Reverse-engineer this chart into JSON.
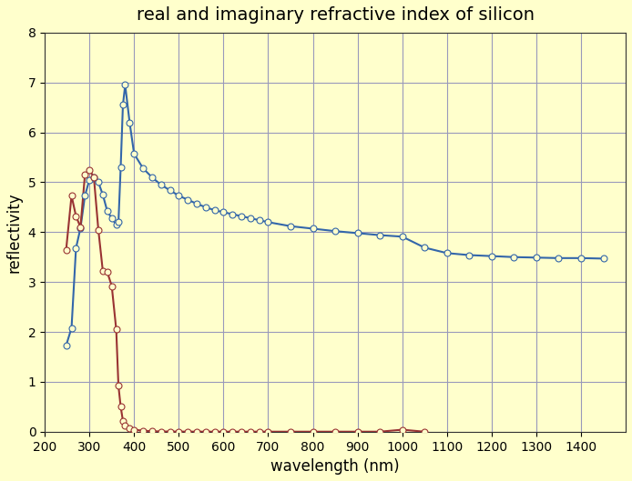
{
  "title": "real and imaginary refractive index of silicon",
  "xlabel": "wavelength (nm)",
  "ylabel": "reflectivity",
  "background_color": "#ffffcc",
  "grid_color": "#9999bb",
  "xlim": [
    200,
    1500
  ],
  "ylim": [
    0,
    8
  ],
  "xticks": [
    200,
    300,
    400,
    500,
    600,
    700,
    800,
    900,
    1000,
    1100,
    1200,
    1300,
    1400
  ],
  "yticks": [
    0,
    1,
    2,
    3,
    4,
    5,
    6,
    7,
    8
  ],
  "n_color": "#6699cc",
  "k_color": "#cc4444",
  "n_line_color": "#3366aa",
  "k_line_color": "#993333",
  "wavelength_n": [
    248,
    260,
    270,
    280,
    290,
    300,
    310,
    320,
    330,
    340,
    350,
    360,
    365,
    370,
    375,
    380,
    390,
    400,
    420,
    440,
    460,
    480,
    500,
    520,
    540,
    560,
    580,
    600,
    620,
    640,
    660,
    680,
    700,
    750,
    800,
    850,
    900,
    950,
    1000,
    1050,
    1100,
    1150,
    1200,
    1250,
    1300,
    1350,
    1400,
    1450
  ],
  "n_values": [
    1.73,
    2.08,
    3.68,
    4.08,
    4.73,
    5.05,
    5.1,
    5.0,
    4.75,
    4.42,
    4.28,
    4.15,
    4.2,
    5.3,
    6.55,
    6.95,
    6.2,
    5.57,
    5.28,
    5.1,
    4.95,
    4.84,
    4.73,
    4.65,
    4.57,
    4.5,
    4.44,
    4.4,
    4.36,
    4.32,
    4.28,
    4.24,
    4.2,
    4.12,
    4.07,
    4.02,
    3.98,
    3.94,
    3.91,
    3.69,
    3.58,
    3.54,
    3.52,
    3.5,
    3.49,
    3.48,
    3.48,
    3.47
  ],
  "wavelength_k": [
    248,
    260,
    270,
    280,
    290,
    300,
    310,
    320,
    330,
    340,
    350,
    360,
    365,
    370,
    375,
    380,
    390,
    400,
    420,
    440,
    460,
    480,
    500,
    520,
    540,
    560,
    580,
    600,
    620,
    640,
    660,
    680,
    700,
    750,
    800,
    850,
    900,
    950,
    1000,
    1050
  ],
  "k_values": [
    3.65,
    4.73,
    4.32,
    4.1,
    5.15,
    5.25,
    5.1,
    4.05,
    3.22,
    3.2,
    2.92,
    2.05,
    0.92,
    0.5,
    0.22,
    0.13,
    0.07,
    0.04,
    0.02,
    0.01,
    0.005,
    0.003,
    0.002,
    0.001,
    0.001,
    0.001,
    0.0005,
    0.0005,
    0.0005,
    0.0005,
    0.0005,
    0.0005,
    0.0005,
    0.0005,
    0.0005,
    0.0005,
    0.0005,
    0.0005,
    0.04,
    0.0
  ]
}
